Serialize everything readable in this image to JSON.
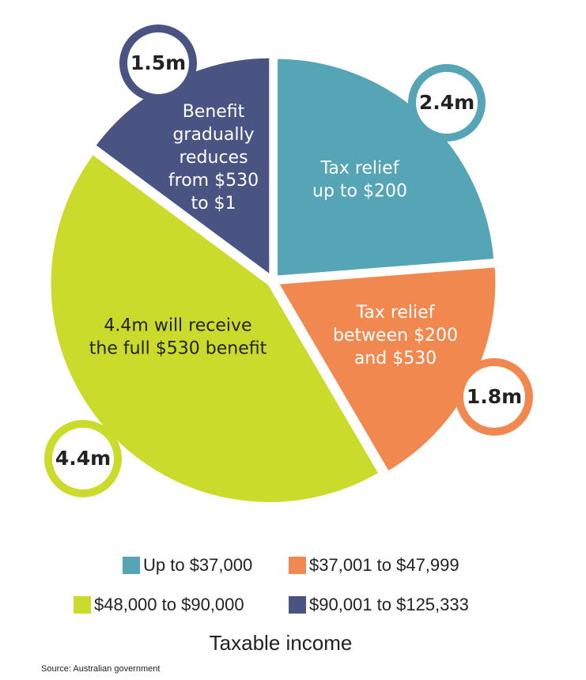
{
  "chart_data": {
    "type": "pie",
    "categories": [
      "Up to $37,000",
      "$37,001 to $47,999",
      "$48,000 to $90,000",
      "$90,001 to $125,333"
    ],
    "values": [
      2.4,
      1.8,
      4.4,
      1.5
    ],
    "value_labels": [
      "2.4m",
      "1.8m",
      "4.4m",
      "1.5m"
    ],
    "colors": [
      "#55a5b7",
      "#f0884f",
      "#cbdb2b",
      "#4a5482"
    ],
    "annotations": [
      [
        "Tax relief",
        "up to $200"
      ],
      [
        "Tax relief",
        "between $200",
        "and $530"
      ],
      [
        "4.4m will receive",
        "the full $530 benefit"
      ],
      [
        "Benefit",
        "gradually",
        "reduces",
        "from $530",
        "to $1"
      ]
    ],
    "legend_title": "Taxable income",
    "source": "Source: Australian government"
  }
}
